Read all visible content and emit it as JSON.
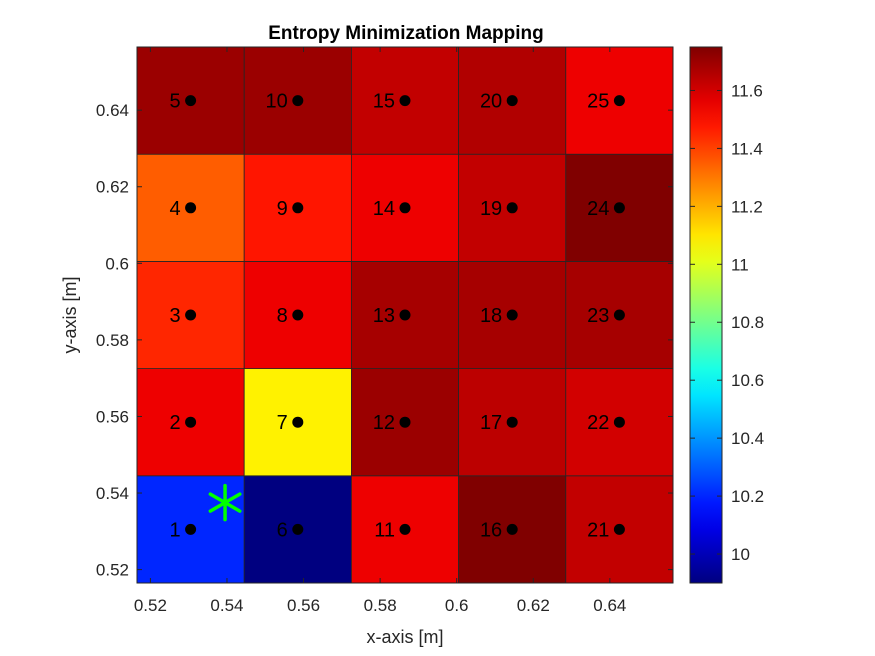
{
  "chart_data": {
    "type": "heatmap",
    "title": "Entropy Minimization Mapping",
    "xlabel": "x-axis [m]",
    "ylabel": "y-axis [m]",
    "xlim": [
      0.5165,
      0.6565
    ],
    "ylim": [
      0.5165,
      0.6565
    ],
    "x_ticks": [
      0.52,
      0.54,
      0.56,
      0.58,
      0.6,
      0.62,
      0.64
    ],
    "x_tick_labels": [
      "0.52",
      "0.54",
      "0.56",
      "0.58",
      "0.6",
      "0.62",
      "0.64"
    ],
    "y_ticks": [
      0.52,
      0.54,
      0.56,
      0.58,
      0.6,
      0.62,
      0.64
    ],
    "y_tick_labels": [
      "0.52",
      "0.54",
      "0.56",
      "0.58",
      "0.6",
      "0.62",
      "0.64"
    ],
    "grid": false,
    "colormap": "jet",
    "colorbar": {
      "limits": [
        9.9,
        11.75
      ],
      "ticks": [
        10,
        10.2,
        10.4,
        10.6,
        10.8,
        11,
        11.2,
        11.4,
        11.6
      ],
      "tick_labels": [
        "10",
        "10.2",
        "10.4",
        "10.6",
        "10.8",
        "11",
        "11.2",
        "11.4",
        "11.6"
      ]
    },
    "cell_size": 0.028,
    "cells": [
      {
        "id": "1",
        "x": 0.5305,
        "y": 0.5305,
        "value": 10.2
      },
      {
        "id": "2",
        "x": 0.5305,
        "y": 0.5585,
        "value": 11.55
      },
      {
        "id": "3",
        "x": 0.5305,
        "y": 0.5865,
        "value": 11.45
      },
      {
        "id": "4",
        "x": 0.5305,
        "y": 0.6145,
        "value": 11.35
      },
      {
        "id": "5",
        "x": 0.5305,
        "y": 0.6425,
        "value": 11.7
      },
      {
        "id": "6",
        "x": 0.5585,
        "y": 0.5305,
        "value": 9.9
      },
      {
        "id": "7",
        "x": 0.5585,
        "y": 0.5585,
        "value": 11.08
      },
      {
        "id": "8",
        "x": 0.5585,
        "y": 0.5865,
        "value": 11.55
      },
      {
        "id": "9",
        "x": 0.5585,
        "y": 0.6145,
        "value": 11.48
      },
      {
        "id": "10",
        "x": 0.5585,
        "y": 0.6425,
        "value": 11.7
      },
      {
        "id": "11",
        "x": 0.5865,
        "y": 0.5305,
        "value": 11.55
      },
      {
        "id": "12",
        "x": 0.5865,
        "y": 0.5585,
        "value": 11.7
      },
      {
        "id": "13",
        "x": 0.5865,
        "y": 0.5865,
        "value": 11.68
      },
      {
        "id": "14",
        "x": 0.5865,
        "y": 0.6145,
        "value": 11.55
      },
      {
        "id": "15",
        "x": 0.5865,
        "y": 0.6425,
        "value": 11.63
      },
      {
        "id": "16",
        "x": 0.6145,
        "y": 0.5305,
        "value": 11.75
      },
      {
        "id": "17",
        "x": 0.6145,
        "y": 0.5585,
        "value": 11.64
      },
      {
        "id": "18",
        "x": 0.6145,
        "y": 0.5865,
        "value": 11.68
      },
      {
        "id": "19",
        "x": 0.6145,
        "y": 0.6145,
        "value": 11.63
      },
      {
        "id": "20",
        "x": 0.6145,
        "y": 0.6425,
        "value": 11.66
      },
      {
        "id": "21",
        "x": 0.6425,
        "y": 0.5305,
        "value": 11.63
      },
      {
        "id": "22",
        "x": 0.6425,
        "y": 0.5585,
        "value": 11.6
      },
      {
        "id": "23",
        "x": 0.6425,
        "y": 0.5865,
        "value": 11.68
      },
      {
        "id": "24",
        "x": 0.6425,
        "y": 0.6145,
        "value": 11.75
      },
      {
        "id": "25",
        "x": 0.6425,
        "y": 0.6425,
        "value": 11.55
      }
    ],
    "marker": {
      "symbol": "asterisk",
      "x": 0.5395,
      "y": 0.5375,
      "color": "#00ff00"
    }
  }
}
